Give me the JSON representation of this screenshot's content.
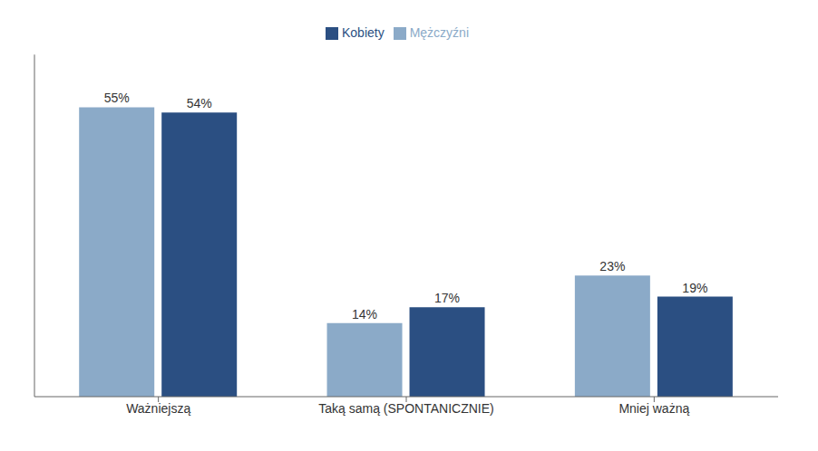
{
  "chart_data": {
    "type": "bar",
    "categories": [
      "Ważniejszą",
      "Taką samą (SPONTANICZNIE)",
      "Mniej ważną"
    ],
    "series": [
      {
        "name": "Mężczyźni",
        "color": "#8baac8",
        "values": [
          55,
          14,
          23
        ],
        "value_labels": [
          "55%",
          "14%",
          "23%"
        ]
      },
      {
        "name": "Kobiety",
        "color": "#2b4f82",
        "values": [
          54,
          17,
          19
        ],
        "value_labels": [
          "54%",
          "17%",
          "19%"
        ]
      }
    ],
    "ylim": [
      0,
      65
    ],
    "tick_labels": "x",
    "data_labels": true,
    "legend": "top",
    "grid": false
  }
}
